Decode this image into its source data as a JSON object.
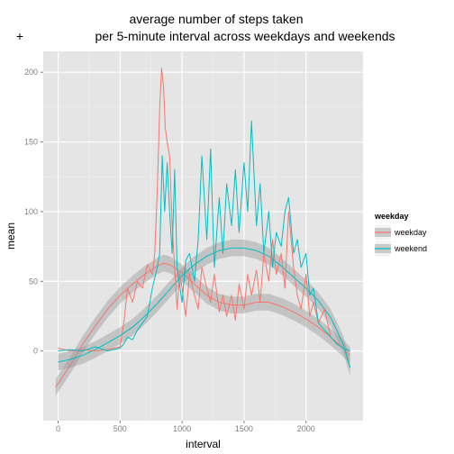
{
  "corner_mark": "+",
  "chart_data": {
    "type": "line",
    "title_line1": "average number of steps taken",
    "title_line2": "per 5-minute interval across weekdays and weekends",
    "xlabel": "interval",
    "ylabel": "mean",
    "xlim": [
      -120,
      2460
    ],
    "ylim": [
      -50,
      215
    ],
    "xticks": [
      0,
      500,
      1000,
      1500,
      2000
    ],
    "yticks": [
      0,
      50,
      100,
      150,
      200
    ],
    "grid": true,
    "legend": {
      "title": "weekday",
      "position": "right"
    },
    "series": [
      {
        "name": "weekday",
        "color": "#F8766D",
        "x": [
          0,
          100,
          200,
          300,
          400,
          500,
          530,
          560,
          600,
          640,
          680,
          720,
          760,
          780,
          800,
          820,
          835,
          850,
          865,
          880,
          900,
          920,
          940,
          960,
          980,
          1000,
          1030,
          1060,
          1100,
          1130,
          1160,
          1200,
          1230,
          1260,
          1300,
          1330,
          1360,
          1400,
          1430,
          1460,
          1500,
          1530,
          1560,
          1600,
          1630,
          1660,
          1700,
          1730,
          1760,
          1800,
          1830,
          1860,
          1900,
          1930,
          1960,
          2000,
          2030,
          2060,
          2100,
          2150,
          2200,
          2250,
          2300,
          2355
        ],
        "values": [
          2,
          0,
          1,
          0,
          1,
          3,
          20,
          45,
          35,
          50,
          45,
          62,
          55,
          70,
          115,
          175,
          203,
          190,
          160,
          150,
          140,
          90,
          60,
          30,
          55,
          45,
          25,
          55,
          40,
          30,
          60,
          45,
          35,
          55,
          28,
          40,
          25,
          40,
          22,
          48,
          30,
          55,
          40,
          58,
          35,
          70,
          50,
          80,
          55,
          70,
          45,
          100,
          60,
          40,
          30,
          55,
          25,
          35,
          20,
          30,
          10,
          5,
          2,
          0
        ]
      },
      {
        "name": "weekend",
        "color": "#00BFC4",
        "x": [
          0,
          100,
          200,
          300,
          400,
          500,
          530,
          560,
          600,
          640,
          680,
          720,
          760,
          800,
          820,
          840,
          860,
          880,
          900,
          920,
          940,
          960,
          1000,
          1030,
          1060,
          1100,
          1130,
          1160,
          1200,
          1230,
          1260,
          1300,
          1330,
          1360,
          1400,
          1430,
          1460,
          1500,
          1530,
          1560,
          1600,
          1630,
          1660,
          1700,
          1730,
          1760,
          1800,
          1830,
          1860,
          1900,
          1930,
          1960,
          2000,
          2030,
          2060,
          2100,
          2150,
          2200,
          2250,
          2300,
          2355
        ],
        "values": [
          0,
          1,
          0,
          3,
          0,
          2,
          5,
          10,
          8,
          15,
          20,
          25,
          45,
          60,
          70,
          140,
          100,
          135,
          100,
          70,
          130,
          60,
          35,
          65,
          70,
          50,
          80,
          140,
          80,
          145,
          60,
          110,
          70,
          120,
          90,
          130,
          85,
          135,
          100,
          165,
          90,
          120,
          70,
          100,
          60,
          85,
          75,
          100,
          110,
          70,
          80,
          60,
          70,
          40,
          45,
          20,
          15,
          10,
          5,
          2,
          0
        ]
      }
    ],
    "smooth": [
      {
        "name": "weekday",
        "x": [
          -20,
          100,
          200,
          300,
          400,
          500,
          600,
          700,
          800,
          850,
          900,
          1000,
          1100,
          1200,
          1300,
          1400,
          1500,
          1600,
          1700,
          1800,
          1900,
          2000,
          2100,
          2200,
          2300,
          2355
        ],
        "values": [
          -26,
          -10,
          5,
          18,
          30,
          40,
          48,
          55,
          61,
          63,
          62,
          56,
          48,
          40,
          35,
          33,
          33,
          35,
          35,
          32,
          28,
          23,
          17,
          10,
          2,
          -3
        ]
      },
      {
        "name": "weekend",
        "x": [
          0,
          100,
          200,
          300,
          400,
          500,
          600,
          700,
          800,
          900,
          1000,
          1100,
          1200,
          1300,
          1400,
          1500,
          1600,
          1700,
          1800,
          1900,
          2000,
          2100,
          2200,
          2300,
          2355
        ],
        "values": [
          -8,
          -6,
          -3,
          1,
          6,
          11,
          17,
          25,
          34,
          44,
          54,
          62,
          68,
          72,
          74,
          74,
          72,
          68,
          61,
          53,
          45,
          36,
          24,
          5,
          -12
        ]
      }
    ]
  }
}
